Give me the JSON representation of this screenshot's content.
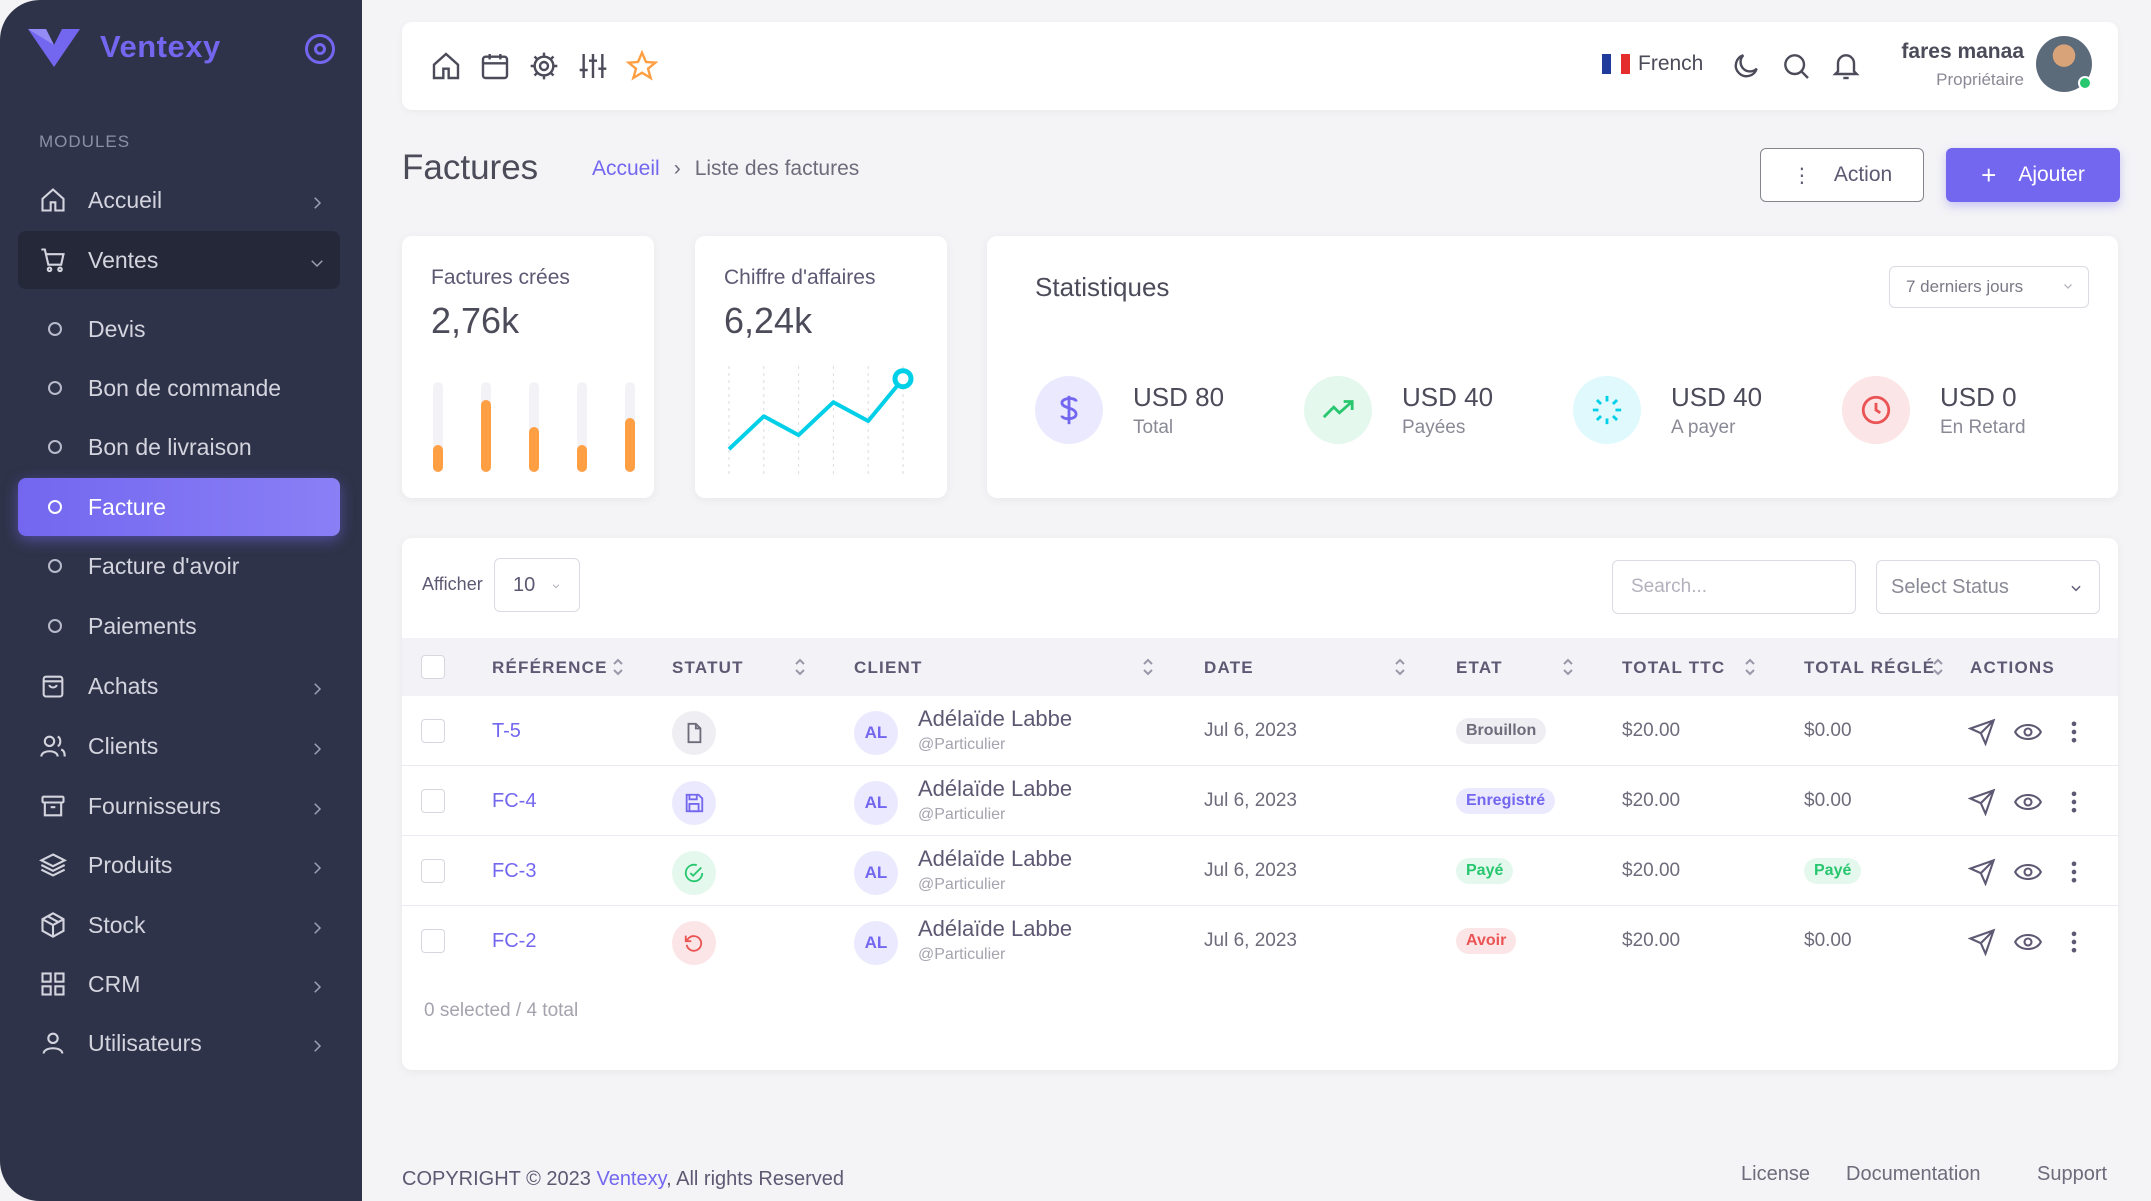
{
  "sidebar": {
    "brand": "Ventexy",
    "section_label": "MODULES",
    "items": [
      {
        "label": "Accueil"
      },
      {
        "label": "Ventes"
      },
      {
        "label": "Achats"
      },
      {
        "label": "Clients"
      },
      {
        "label": "Fournisseurs"
      },
      {
        "label": "Produits"
      },
      {
        "label": "Stock"
      },
      {
        "label": "CRM"
      },
      {
        "label": "Utilisateurs"
      }
    ],
    "sub_items": [
      {
        "label": "Devis"
      },
      {
        "label": "Bon de commande"
      },
      {
        "label": "Bon de livraison"
      },
      {
        "label": "Facture"
      },
      {
        "label": "Facture d'avoir"
      },
      {
        "label": "Paiements"
      }
    ],
    "colors": {
      "background": "#2f3349",
      "accent": "#7367f0"
    }
  },
  "topbar": {
    "language": "French",
    "user_name": "fares manaa",
    "user_role": "Propriétaire"
  },
  "header": {
    "title": "Factures",
    "breadcrumb_home": "Accueil",
    "breadcrumb_current": "Liste des factures",
    "action_label": "Action",
    "add_label": "Ajouter"
  },
  "cards": {
    "invoices": {
      "label": "Factures crées",
      "value": "2,76k",
      "bars": [
        0.3,
        0.8,
        0.5,
        0.3,
        0.6
      ]
    },
    "revenue": {
      "label": "Chiffre d'affaires",
      "value": "6,24k",
      "line": [
        0.2,
        0.55,
        0.35,
        0.7,
        0.5,
        0.95
      ]
    }
  },
  "stats": {
    "title": "Statistiques",
    "period": "7 derniers jours",
    "items": [
      {
        "value": "USD 80",
        "label": "Total",
        "icon": "dollar-icon",
        "color": "#7367f0",
        "bg": "#ebe9fd"
      },
      {
        "value": "USD 40",
        "label": "Payées",
        "icon": "trending-up-icon",
        "color": "#28c76f",
        "bg": "#e5f8ed"
      },
      {
        "value": "USD 40",
        "label": "A payer",
        "icon": "loader-icon",
        "color": "#00cfe8",
        "bg": "#e0f9fc"
      },
      {
        "value": "USD 0",
        "label": "En Retard",
        "icon": "clock-icon",
        "color": "#ea5455",
        "bg": "#fce5e6"
      }
    ]
  },
  "table": {
    "show_label": "Afficher",
    "page_size": "10",
    "search_placeholder": "Search...",
    "status_placeholder": "Select Status",
    "columns": [
      "RÉFÉRENCE",
      "STATUT",
      "CLIENT",
      "DATE",
      "ETAT",
      "TOTAL TTC",
      "TOTAL RÉGLÉ",
      "ACTIONS"
    ],
    "rows": [
      {
        "ref": "T-5",
        "status_icon": "file-icon",
        "client_initials": "AL",
        "client": "Adélaïde Labbe",
        "client_type": "@Particulier",
        "date": "Jul 6, 2023",
        "etat": "Brouillon",
        "total": "$20.00",
        "paid": "$0.00",
        "paid_badge": false
      },
      {
        "ref": "FC-4",
        "status_icon": "save-icon",
        "client_initials": "AL",
        "client": "Adélaïde Labbe",
        "client_type": "@Particulier",
        "date": "Jul 6, 2023",
        "etat": "Enregistré",
        "total": "$20.00",
        "paid": "$0.00",
        "paid_badge": false
      },
      {
        "ref": "FC-3",
        "status_icon": "check-circle-icon",
        "client_initials": "AL",
        "client": "Adélaïde Labbe",
        "client_type": "@Particulier",
        "date": "Jul 6, 2023",
        "etat": "Payé",
        "total": "$20.00",
        "paid": "Payé",
        "paid_badge": true
      },
      {
        "ref": "FC-2",
        "status_icon": "rotate-ccw-icon",
        "client_initials": "AL",
        "client": "Adélaïde Labbe",
        "client_type": "@Particulier",
        "date": "Jul 6, 2023",
        "etat": "Avoir",
        "total": "$20.00",
        "paid": "$0.00",
        "paid_badge": false
      }
    ],
    "footer": "0 selected / 4 total"
  },
  "footer": {
    "copyright_prefix": "COPYRIGHT © 2023",
    "copyright_brand": "Ventexy",
    "copyright_suffix": ", All rights Reserved",
    "links": [
      "License",
      "Documentation",
      "Support"
    ]
  }
}
